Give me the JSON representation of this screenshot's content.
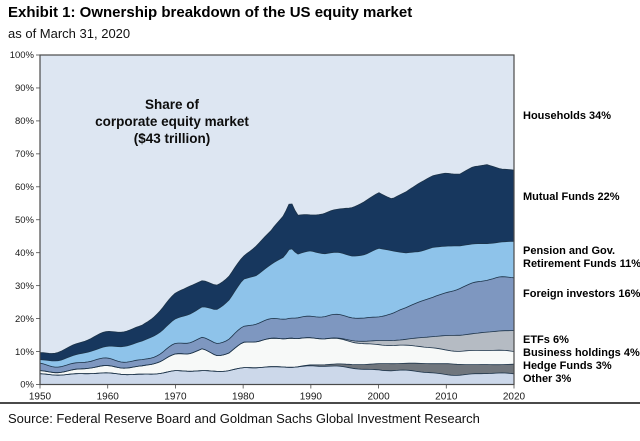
{
  "header": {
    "title": "Exhibit 1: Ownership breakdown of the US equity market",
    "subtitle": "as of March 31, 2020"
  },
  "source": {
    "text": "Source: Federal Reserve Board and Goldman Sachs Global Investment Research"
  },
  "chart_data": {
    "type": "area",
    "stacked": true,
    "annotation": {
      "lines": [
        "Share of",
        "corporate equity market",
        "($43 trillion)"
      ]
    },
    "x": [
      1950,
      1953,
      1956,
      1959,
      1962,
      1965,
      1968,
      1970,
      1972,
      1974,
      1976,
      1978,
      1980,
      1982,
      1984,
      1986,
      1987,
      1988,
      1990,
      1992,
      1994,
      1996,
      1998,
      2000,
      2002,
      2004,
      2006,
      2008,
      2010,
      2012,
      2014,
      2016,
      2018,
      2020
    ],
    "xticks": [
      1950,
      1960,
      1970,
      1980,
      1990,
      2000,
      2010,
      2020
    ],
    "yticks": [
      0,
      10,
      20,
      30,
      40,
      50,
      60,
      70,
      80,
      90,
      100
    ],
    "ylim": [
      0,
      100
    ],
    "ytick_suffix": "%",
    "grid": false,
    "legend_position": "right-outside",
    "series": [
      {
        "name": "households",
        "label": "Households 34%",
        "color": "#dde6f2",
        "values": [
          91,
          89.5,
          87.8,
          85.8,
          83.8,
          81.6,
          77,
          73,
          70,
          68,
          68.5,
          66.2,
          61.5,
          58.2,
          54.3,
          48,
          43.3,
          48.2,
          48.7,
          48.8,
          48.2,
          46.7,
          44.6,
          41.7,
          43.9,
          42.1,
          39.1,
          36.7,
          35.4,
          35.7,
          33.7,
          33.1,
          34.6,
          34.5
        ]
      },
      {
        "name": "mutual_funds",
        "label": "Mutual Funds 22%",
        "color": "#17375e",
        "values": [
          2,
          2.8,
          3.2,
          3.8,
          4.3,
          4.8,
          6.5,
          7.5,
          8.5,
          8,
          8,
          7.5,
          7,
          9,
          10,
          13,
          14.5,
          12,
          11,
          12,
          12.5,
          14.5,
          16,
          17,
          15.5,
          18,
          20.5,
          21.5,
          22.5,
          22,
          23.5,
          24,
          22,
          22
        ]
      },
      {
        "name": "pension_gov_retirement_funds",
        "label": "Pension and Gov. Retirement Funds 11%",
        "color": "#8ec3ea",
        "values": [
          1,
          1.5,
          2.5,
          3.5,
          4.5,
          5.5,
          7,
          8,
          9,
          9.5,
          10,
          12,
          14.5,
          15,
          16.5,
          18.5,
          21,
          19,
          19.5,
          19,
          19,
          18.5,
          19,
          20.5,
          19,
          17,
          15.5,
          15.5,
          14,
          13,
          12,
          11.5,
          11,
          11
        ]
      },
      {
        "name": "foreign_investors",
        "label": "Foreign investors 16%",
        "color": "#7e97c0",
        "values": [
          2,
          2,
          2,
          2.1,
          2.2,
          2.3,
          2.5,
          3,
          3.3,
          3.5,
          4,
          4.2,
          4.5,
          5,
          5.5,
          6,
          6.2,
          6.3,
          6.5,
          6.5,
          6.8,
          7,
          7.3,
          7.6,
          8.5,
          9.5,
          11,
          12,
          13.5,
          14.5,
          15.5,
          15.5,
          16,
          16
        ]
      },
      {
        "name": "etfs",
        "label": "ETFs 6%",
        "color": "#b5bbc3",
        "values": [
          0,
          0,
          0,
          0,
          0,
          0,
          0,
          0,
          0,
          0,
          0,
          0,
          0,
          0,
          0,
          0,
          0,
          0,
          0,
          0,
          0.2,
          0.5,
          0.8,
          1.2,
          1.6,
          2.2,
          2.8,
          3.5,
          4,
          4.5,
          5,
          5.5,
          6,
          6
        ]
      },
      {
        "name": "business_holdings",
        "label": "Business holdings 4%",
        "color": "#f7f9f8",
        "values": [
          1,
          1.2,
          1.5,
          1.8,
          2,
          2.5,
          3.5,
          4.5,
          5,
          6.5,
          5,
          5.5,
          7.5,
          7.8,
          8.5,
          9,
          9.5,
          9,
          8.5,
          8,
          7.5,
          7,
          6.5,
          6,
          5.5,
          5,
          4.8,
          4.5,
          4.2,
          4,
          4,
          4,
          4,
          4
        ]
      },
      {
        "name": "hedge_funds",
        "label": "Hedge Funds 3%",
        "color": "#70767d",
        "values": [
          0,
          0,
          0,
          0,
          0,
          0,
          0,
          0,
          0,
          0,
          0,
          0,
          0,
          0,
          0,
          0,
          0,
          0,
          0.3,
          0.5,
          0.8,
          1,
          1.2,
          1.5,
          1.8,
          2.2,
          2.5,
          2.7,
          3,
          3,
          3,
          3,
          3,
          3
        ]
      },
      {
        "name": "other",
        "label": "Other 3%",
        "color": "#ccd8ea",
        "values": [
          3,
          3,
          3,
          3,
          3.2,
          3.3,
          3.5,
          4,
          4.2,
          4.5,
          4.5,
          4.6,
          5,
          5,
          5.2,
          5.5,
          5.5,
          5.5,
          5.5,
          5.2,
          5,
          4.8,
          4.6,
          4.5,
          4.2,
          4,
          3.8,
          3.6,
          3.4,
          3.3,
          3.3,
          3.4,
          3.4,
          3.5
        ]
      }
    ],
    "colors": {
      "boundary_line": "#1c3349",
      "axis_border": "#4a4a4a",
      "tick_text": "#1a1a1a"
    }
  },
  "right_labels": [
    {
      "text": "Households 34%"
    },
    {
      "text": "Mutual Funds 22%"
    },
    {
      "text": "Pension and Gov."
    },
    {
      "text": "Retirement Funds 11%"
    },
    {
      "text": "Foreign investors 16%"
    },
    {
      "text": "ETFs 6%"
    },
    {
      "text": "Business holdings 4%"
    },
    {
      "text": "Hedge Funds 3%"
    },
    {
      "text": "Other 3%"
    }
  ]
}
